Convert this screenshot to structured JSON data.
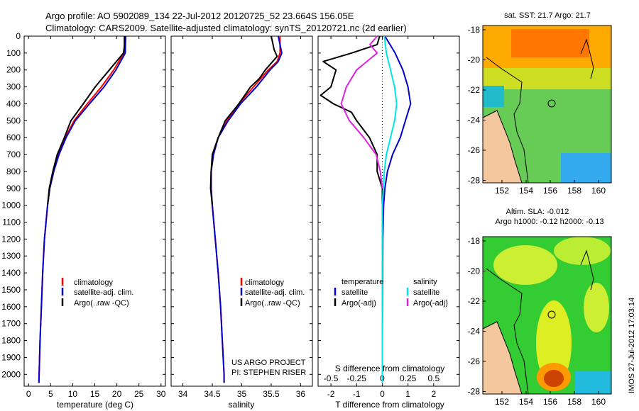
{
  "header": {
    "line1": "Argo profile: AO 5902089_134 22-Jul-2012 20120725_52 23.664S 156.05E",
    "line2": "Climatology: CARS2009. Satellite-adjusted climatology: synTS_20120721.nc (2d earlier)"
  },
  "colors": {
    "clim": "#ff0000",
    "sat": "#0000cc",
    "argo": "#000000",
    "sat_diff_t": "#0000cc",
    "sat_diff_s": "#00e5e5",
    "argo_diff_s": "#e020e0"
  },
  "depth_axis": {
    "ticks": [
      0,
      100,
      200,
      300,
      400,
      500,
      600,
      700,
      800,
      900,
      1000,
      1100,
      1200,
      1300,
      1400,
      1500,
      1600,
      1700,
      1800,
      1900,
      2000
    ],
    "range": [
      0,
      2070
    ]
  },
  "chart_data": [
    {
      "type": "line",
      "id": "temperature",
      "xlabel": "temperature (deg C)",
      "xlim": [
        -1,
        31
      ],
      "xticks": [
        0,
        5,
        10,
        15,
        20,
        25,
        30
      ],
      "legend": [
        "climatology",
        "satellite-adj. clim.",
        "Argo(..raw -QC)"
      ],
      "series": [
        {
          "name": "climatology",
          "depth": [
            0,
            100,
            200,
            300,
            400,
            500,
            600,
            700,
            800,
            900,
            1000,
            1200,
            1400,
            1600,
            1800,
            2000,
            2050
          ],
          "values": [
            21.9,
            21.6,
            19.3,
            16.5,
            13.3,
            10.3,
            8.3,
            6.8,
            5.7,
            4.8,
            4.3,
            3.6,
            3.2,
            2.9,
            2.6,
            2.4,
            2.35
          ]
        },
        {
          "name": "satellite-adj. clim.",
          "depth": [
            0,
            100,
            200,
            300,
            400,
            500,
            600,
            700,
            800,
            900,
            1000,
            1200,
            1400,
            1600,
            1800,
            2000,
            2050
          ],
          "values": [
            22.0,
            21.9,
            19.8,
            17.1,
            13.8,
            10.6,
            8.5,
            6.9,
            5.7,
            4.8,
            4.3,
            3.6,
            3.2,
            2.9,
            2.6,
            2.4,
            2.35
          ]
        },
        {
          "name": "Argo(..raw -QC)",
          "depth": [
            0,
            60,
            100,
            200,
            300,
            400,
            500,
            600,
            700,
            800,
            900,
            1000
          ],
          "values": [
            21.7,
            21.7,
            21.5,
            18.3,
            15.1,
            12.4,
            9.6,
            8.1,
            6.5,
            5.5,
            4.7,
            4.3
          ]
        }
      ]
    },
    {
      "type": "line",
      "id": "salinity",
      "xlabel": "salinity",
      "xlim": [
        33.8,
        36.2
      ],
      "xticks": [
        34,
        34.5,
        35,
        35.5,
        36
      ],
      "legend": [
        "climatology",
        "satellite-adj. clim.",
        "Argo(..raw -QC)"
      ],
      "series": [
        {
          "name": "climatology",
          "depth": [
            0,
            100,
            150,
            200,
            300,
            400,
            500,
            600,
            700,
            800,
            900,
            1000,
            1200,
            1400,
            1600,
            1800,
            2000,
            2050
          ],
          "values": [
            35.65,
            35.65,
            35.6,
            35.45,
            35.2,
            34.95,
            34.75,
            34.6,
            34.52,
            34.48,
            34.48,
            34.5,
            34.55,
            34.6,
            34.64,
            34.67,
            34.7,
            34.7
          ]
        },
        {
          "name": "satellite-adj. clim.",
          "depth": [
            0,
            100,
            150,
            200,
            300,
            400,
            500,
            600,
            700,
            800,
            900,
            1000,
            1200,
            1400,
            1600,
            1800,
            2000,
            2050
          ],
          "values": [
            35.62,
            35.68,
            35.62,
            35.48,
            35.25,
            34.98,
            34.77,
            34.6,
            34.52,
            34.48,
            34.48,
            34.5,
            34.55,
            34.6,
            34.64,
            34.67,
            34.7,
            34.7
          ]
        },
        {
          "name": "Argo(..raw -QC)",
          "depth": [
            0,
            80,
            120,
            200,
            250,
            300,
            400,
            500,
            600,
            700,
            800,
            900,
            1000
          ],
          "values": [
            35.5,
            35.55,
            35.6,
            35.4,
            35.3,
            35.15,
            34.95,
            34.72,
            34.6,
            34.5,
            34.48,
            34.47,
            34.5
          ]
        }
      ],
      "credit": [
        "US ARGO PROJECT",
        "PI: STEPHEN RISER"
      ]
    },
    {
      "type": "line",
      "id": "difference",
      "xlabel": "T difference from climatology",
      "xlabel_top": "S difference from climatology",
      "xlim": [
        -2.5,
        3
      ],
      "xticks": [
        -2,
        -1,
        0,
        1,
        2
      ],
      "xticks_top": [
        "-0.5",
        "-0.25",
        "0",
        "0.25",
        "0.5"
      ],
      "legend_titles": [
        "temperature",
        "salinity"
      ],
      "legend": [
        "satellite",
        "Argo(-adj)",
        "satellite",
        "Argo(-adj)"
      ],
      "series": [
        {
          "name": "temperature satellite",
          "depth": [
            0,
            50,
            100,
            200,
            300,
            400,
            500,
            600,
            700,
            800,
            900,
            1000,
            1200,
            1500,
            1800,
            2050
          ],
          "values": [
            0.1,
            0.3,
            0.5,
            0.8,
            1.0,
            1.1,
            0.9,
            0.7,
            0.4,
            0.2,
            0.1,
            0.05,
            0.02,
            0.01,
            0,
            0
          ]
        },
        {
          "name": "temperature Argo(-adj)",
          "depth": [
            0,
            50,
            100,
            150,
            200,
            300,
            350,
            400,
            450,
            500,
            600,
            700,
            800,
            900,
            1000
          ],
          "values": [
            -0.1,
            -0.2,
            -1.2,
            -2.3,
            -1.8,
            -2.0,
            -2.4,
            -1.9,
            -1.2,
            -1.0,
            -0.5,
            -0.2,
            -0.2,
            0.0,
            0.0
          ]
        },
        {
          "name": "salinity satellite",
          "depth": [
            0,
            100,
            200,
            300,
            400,
            500,
            600,
            700,
            800,
            900,
            1000,
            1200,
            1500,
            1800,
            2050
          ],
          "values": [
            0.02,
            0.04,
            0.08,
            0.12,
            0.14,
            0.12,
            0.08,
            0.04,
            0.02,
            0.01,
            0,
            0,
            0,
            0,
            0
          ]
        },
        {
          "name": "salinity Argo(-adj)",
          "depth": [
            0,
            50,
            100,
            200,
            300,
            400,
            500,
            600,
            700,
            800,
            900
          ],
          "values": [
            -0.05,
            -0.12,
            -0.05,
            -0.25,
            -0.35,
            -0.4,
            -0.32,
            -0.18,
            -0.06,
            -0.02,
            0
          ]
        }
      ]
    }
  ],
  "maps": [
    {
      "id": "sst",
      "title1": "sat. SST: 21.7  Argo: 21.7",
      "title2": "",
      "lat_ticks": [
        "-18",
        "-20",
        "-22",
        "-24",
        "-26",
        "-28"
      ],
      "lon_ticks": [
        "152",
        "154",
        "156",
        "158",
        "160"
      ]
    },
    {
      "id": "sla",
      "title1": "Altim. SLA: -0.012",
      "title2": "Argo h1000: -0.12  h2000: -0.13",
      "lat_ticks": [
        "-18",
        "-20",
        "-22",
        "-24",
        "-26",
        "-28"
      ],
      "lon_ticks": [
        "152",
        "154",
        "156",
        "158",
        "160"
      ]
    }
  ],
  "watermark": "IMOS 27-Jul-2012 17:03:14"
}
